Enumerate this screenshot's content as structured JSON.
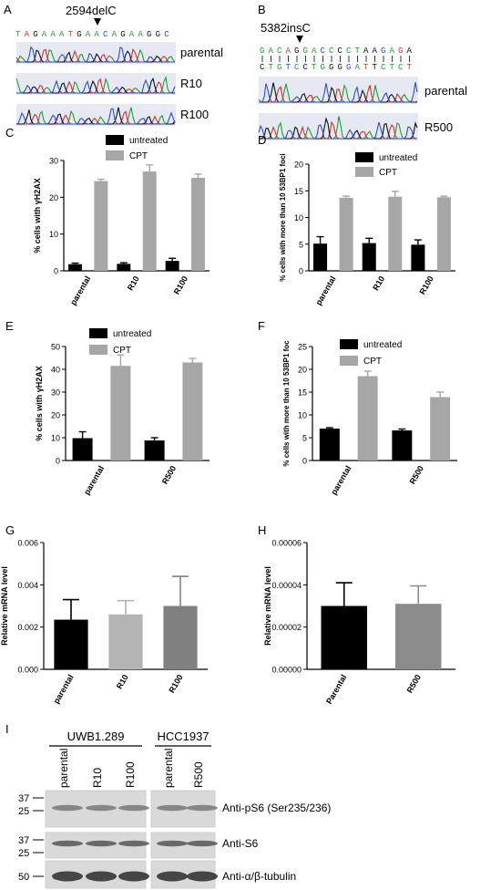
{
  "panels": {
    "A": {
      "letter": "A",
      "mutation": "2594delC",
      "sequence": "TAGAAATGAACAGAAGGC",
      "rows": [
        "parental",
        "R10",
        "R100"
      ]
    },
    "B": {
      "letter": "B",
      "mutation": "5382insC",
      "sequence_top": "GACAGGACCCCTAAGAGA",
      "sequence_bottom": "CTGTCCTGGGGATTCTCT",
      "rows": [
        "parental",
        "R500"
      ]
    },
    "I": {
      "letter": "I",
      "groups": [
        {
          "name": "UWB1.289",
          "lanes": [
            "parental",
            "R10",
            "R100"
          ]
        },
        {
          "name": "HCC1937",
          "lanes": [
            "parental",
            "R500"
          ]
        }
      ],
      "blots": [
        {
          "label": "Anti-pS6 (Ser235/236)",
          "markers": [
            "37",
            "25"
          ]
        },
        {
          "label": "Anti-S6",
          "markers": [
            "37",
            "25"
          ]
        },
        {
          "label": "Anti-α/β-tubulin",
          "markers": [
            "50"
          ]
        }
      ]
    }
  },
  "colors": {
    "untreated": "#000000",
    "CPT": "#a6a6a6",
    "mid": "#8c8c8c",
    "light": "#b4b4b4",
    "dark": "#808080",
    "trace_blue": "#2b4fd6",
    "trace_green": "#1f9e3a",
    "trace_red": "#d8322a",
    "trace_black": "#111111"
  },
  "chart_data": [
    {
      "id": "C",
      "letter": "C",
      "type": "bar",
      "categories": [
        "parental",
        "R10",
        "R100"
      ],
      "ylabel": "% cells with γH2AX",
      "ylim": [
        0,
        30
      ],
      "yticks": [
        0,
        10,
        20,
        30
      ],
      "legend": [
        "untreated",
        "CPT"
      ],
      "series": [
        {
          "name": "untreated",
          "values": [
            1.8,
            1.9,
            2.7
          ],
          "errors": [
            0.3,
            0.3,
            0.7
          ]
        },
        {
          "name": "CPT",
          "values": [
            24.4,
            27.0,
            25.3
          ],
          "errors": [
            0.5,
            1.8,
            1.0
          ]
        }
      ]
    },
    {
      "id": "D",
      "letter": "D",
      "type": "bar",
      "categories": [
        "parental",
        "R10",
        "R100"
      ],
      "ylabel": "% cells with more than 10 53BP1 foci",
      "ylim": [
        0,
        20
      ],
      "yticks": [
        0,
        5,
        10,
        15,
        20
      ],
      "legend": [
        "untreated",
        "CPT"
      ],
      "series": [
        {
          "name": "untreated",
          "values": [
            5.1,
            5.2,
            4.9
          ],
          "errors": [
            1.3,
            0.9,
            0.9
          ]
        },
        {
          "name": "CPT",
          "values": [
            13.7,
            13.9,
            13.8
          ],
          "errors": [
            0.3,
            1.0,
            0.2
          ]
        }
      ]
    },
    {
      "id": "E",
      "letter": "E",
      "type": "bar",
      "categories": [
        "parental",
        "R500"
      ],
      "ylabel": "% cells with γH2AX",
      "ylim": [
        0,
        50
      ],
      "yticks": [
        0,
        10,
        20,
        30,
        40,
        50
      ],
      "legend": [
        "untreated",
        "CPT"
      ],
      "series": [
        {
          "name": "untreated",
          "values": [
            9.8,
            8.8
          ],
          "errors": [
            2.8,
            1.2
          ]
        },
        {
          "name": "CPT",
          "values": [
            41.5,
            43.0
          ],
          "errors": [
            4.8,
            1.8
          ]
        }
      ]
    },
    {
      "id": "F",
      "letter": "F",
      "type": "bar",
      "categories": [
        "parental",
        "R500"
      ],
      "ylabel": "% cells with more than 10 53BP1 foc",
      "ylim": [
        0,
        25
      ],
      "yticks": [
        0,
        5,
        10,
        15,
        20,
        25
      ],
      "legend": [
        "untreated",
        "CPT"
      ],
      "series": [
        {
          "name": "untreated",
          "values": [
            7.0,
            6.6
          ],
          "errors": [
            0.2,
            0.3
          ]
        },
        {
          "name": "CPT",
          "values": [
            18.5,
            13.9
          ],
          "errors": [
            1.1,
            1.1
          ]
        }
      ]
    },
    {
      "id": "G",
      "letter": "G",
      "type": "bar",
      "categories": [
        "parental",
        "R10",
        "R100"
      ],
      "ylabel": "Relative mRNA level",
      "ylim": [
        0,
        0.006
      ],
      "yticks": [
        "0.000",
        "0.002",
        "0.004",
        "0.006"
      ],
      "ytick_values": [
        0,
        0.002,
        0.004,
        0.006
      ],
      "values": [
        0.00235,
        0.0026,
        0.003
      ],
      "errors": [
        0.00095,
        0.00065,
        0.0014
      ]
    },
    {
      "id": "H",
      "letter": "H",
      "type": "bar",
      "categories": [
        "Parental",
        "R500"
      ],
      "ylabel": "Relative mRNA level",
      "ylim": [
        0,
        6e-05
      ],
      "yticks": [
        "0.00000",
        "0.00002",
        "0.00004",
        "0.00006"
      ],
      "ytick_values": [
        0,
        2e-05,
        4e-05,
        6e-05
      ],
      "values": [
        3e-05,
        3.1e-05
      ],
      "errors": [
        1.1e-05,
        8.5e-06
      ]
    }
  ]
}
